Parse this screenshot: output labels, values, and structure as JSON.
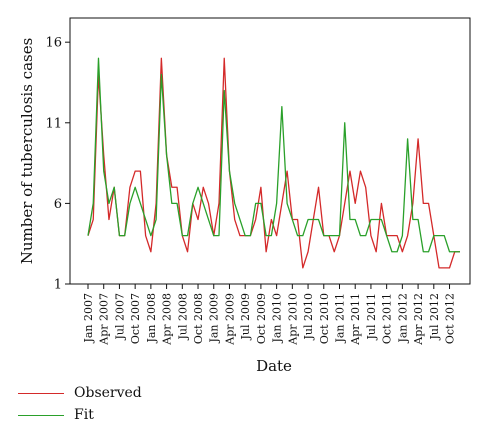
{
  "colors": {
    "observed": "#d42a2a",
    "fit": "#2aa02a",
    "axis": "#111111"
  },
  "chart_data": {
    "type": "line",
    "title": "",
    "xlabel": "Date",
    "ylabel": "Number of tuberculosis cases",
    "ylim": [
      1,
      17.5
    ],
    "yticks": [
      1,
      6,
      11,
      16
    ],
    "grid": false,
    "legend_position": "bottom-left",
    "xtick_labels": [
      "Jan 2007",
      "Apr 2007",
      "Jul 2007",
      "Oct 2007",
      "Jan 2008",
      "Apr 2008",
      "Jul 2008",
      "Oct 2008",
      "Jan 2009",
      "Apr 2009",
      "Jul 2009",
      "Oct 2009",
      "Jan 2010",
      "Apr 2010",
      "Jul 2010",
      "Oct 2010",
      "Jan 2011",
      "Apr 2011",
      "Jul 2011",
      "Oct 2011",
      "Jan 2012",
      "Apr 2012",
      "Jul 2012",
      "Oct 2012"
    ],
    "x_start": "Jan 2007",
    "x_end": "Dec 2012",
    "series": [
      {
        "name": "Observed",
        "values": [
          4,
          5,
          14,
          9,
          5,
          7,
          4,
          4,
          7,
          8,
          8,
          4,
          3,
          6,
          15,
          9,
          7,
          7,
          4,
          3,
          6,
          5,
          7,
          6,
          4,
          6,
          15,
          8,
          5,
          4,
          4,
          4,
          5,
          7,
          3,
          5,
          4,
          6,
          8,
          5,
          5,
          2,
          3,
          5,
          7,
          4,
          4,
          3,
          4,
          6,
          8,
          6,
          8,
          7,
          4,
          3,
          6,
          4,
          4,
          4,
          3,
          4,
          6,
          10,
          6,
          6,
          4,
          2,
          2,
          2,
          3,
          3
        ]
      },
      {
        "name": "Fit",
        "values": [
          4,
          6,
          15,
          8,
          6,
          7,
          4,
          4,
          6,
          7,
          6,
          5,
          4,
          5,
          14,
          9,
          6,
          6,
          4,
          4,
          6,
          7,
          6,
          5,
          4,
          4,
          13,
          8,
          6,
          5,
          4,
          4,
          6,
          6,
          4,
          4,
          6,
          12,
          6,
          5,
          4,
          4,
          5,
          5,
          5,
          4,
          4,
          4,
          4,
          11,
          5,
          5,
          4,
          4,
          5,
          5,
          5,
          4,
          3,
          3,
          4,
          10,
          5,
          5,
          3,
          3,
          4,
          4,
          4,
          3,
          3,
          3
        ]
      }
    ]
  }
}
